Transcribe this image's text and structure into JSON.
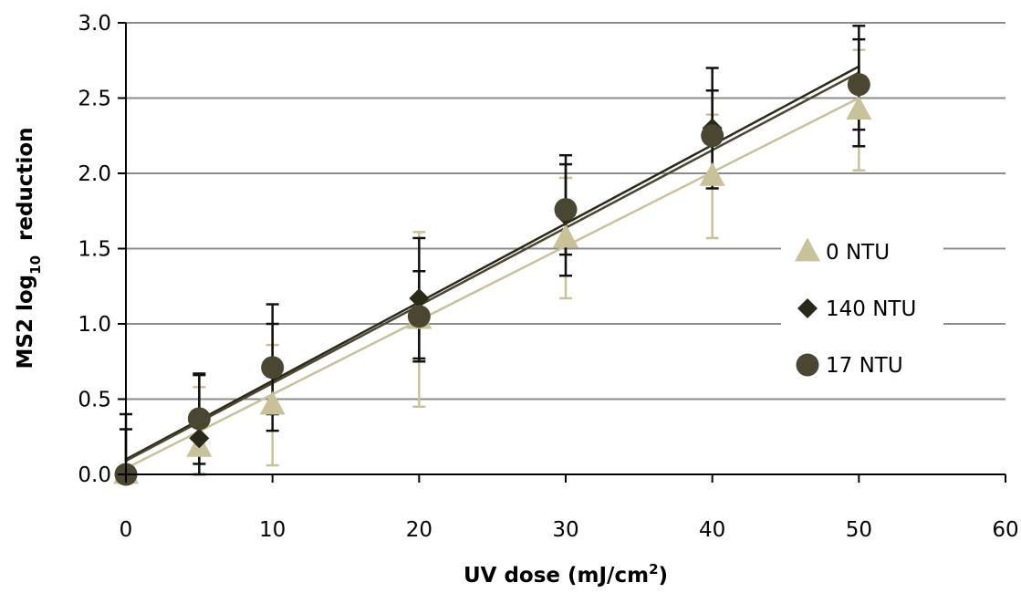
{
  "chart_data": {
    "type": "scatter",
    "xlabel": "UV dose (mJ/cm²)",
    "xlabel_main": "UV dose (mJ/cm",
    "xlabel_sup": "2",
    "xlabel_end": ")",
    "ylabel_main": "MS2 log",
    "ylabel_sub": "10",
    "ylabel_end": "  reduction",
    "xlim": [
      0,
      60
    ],
    "ylim": [
      0,
      3.0
    ],
    "x_ticks": [
      0,
      10,
      20,
      30,
      40,
      50,
      60
    ],
    "y_ticks": [
      0,
      0.5,
      1.0,
      1.5,
      2.0,
      2.5,
      3.0
    ],
    "x_tick_labels": [
      "0",
      "10",
      "20",
      "30",
      "40",
      "50",
      "60"
    ],
    "y_tick_labels": [
      "0.0",
      "0.5",
      "1.0",
      "1.5",
      "2.0",
      "2.5",
      "3.0"
    ],
    "grid": "horizontal",
    "legend_position": "right",
    "series": [
      {
        "name": "0 NTU",
        "marker": "triangle",
        "color": "#c9c19a",
        "x": [
          0,
          5,
          10,
          20,
          30,
          40,
          50
        ],
        "y": [
          0.0,
          0.18,
          0.46,
          1.03,
          1.57,
          1.98,
          2.42
        ],
        "err": [
          0.0,
          0.4,
          0.4,
          0.58,
          0.4,
          0.41,
          0.4
        ],
        "fit": {
          "intercept": 0.04,
          "slope": 0.0492
        }
      },
      {
        "name": "140 NTU",
        "marker": "diamond",
        "color": "#2a2a1a",
        "x": [
          0,
          5,
          10,
          20,
          30,
          40,
          50
        ],
        "y": [
          0.0,
          0.24,
          0.7,
          1.17,
          1.72,
          2.3,
          2.58
        ],
        "err": [
          0.4,
          0.42,
          0.3,
          0.4,
          0.4,
          0.4,
          0.4
        ],
        "fit": {
          "intercept": 0.1,
          "slope": 0.0522
        }
      },
      {
        "name": "17 NTU",
        "marker": "circle",
        "color": "#4b4631",
        "x": [
          0,
          5,
          10,
          20,
          30,
          40,
          50
        ],
        "y": [
          0.0,
          0.37,
          0.71,
          1.05,
          1.76,
          2.25,
          2.59
        ],
        "err": [
          0.3,
          0.3,
          0.42,
          0.3,
          0.3,
          0.3,
          0.3
        ],
        "fit": {
          "intercept": 0.09,
          "slope": 0.0516
        }
      }
    ]
  }
}
